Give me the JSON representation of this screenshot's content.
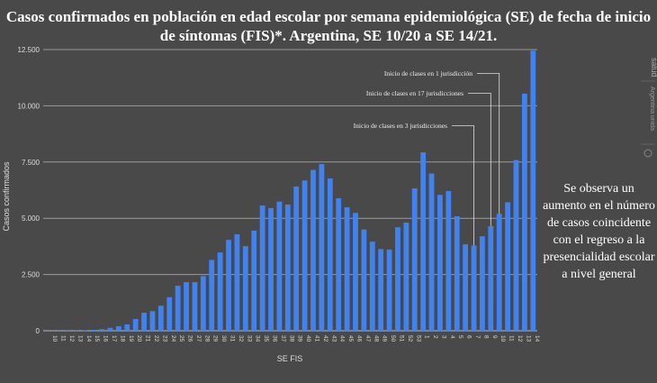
{
  "chart_data": {
    "type": "bar",
    "title": "Casos confirmados en población en edad escolar por semana epidemiológica (SE) de fecha de inicio de síntomas (FIS)*. Argentina, SE 10/20 a SE 14/21.",
    "xlabel": "SE FIS",
    "ylabel": "Casos confirmados",
    "ylim": [
      0,
      12500
    ],
    "yticks": [
      "0",
      "2.500",
      "5.000",
      "7.500",
      "10.000",
      "12.500"
    ],
    "ytick_values": [
      0,
      2500,
      5000,
      7500,
      10000,
      12500
    ],
    "grid": true,
    "bar_color": "#3f82f0",
    "categories": [
      "10",
      "11",
      "12",
      "13",
      "14",
      "15",
      "16",
      "17",
      "18",
      "19",
      "20",
      "21",
      "22",
      "23",
      "24",
      "25",
      "26",
      "27",
      "28",
      "29",
      "30",
      "31",
      "32",
      "33",
      "34",
      "35",
      "36",
      "37",
      "38",
      "39",
      "40",
      "41",
      "42",
      "43",
      "44",
      "45",
      "46",
      "47",
      "48",
      "49",
      "50",
      "51",
      "52",
      "53",
      "1",
      "2",
      "3",
      "4",
      "5",
      "6",
      "7",
      "8",
      "9",
      "10",
      "11",
      "12",
      "13",
      "14"
    ],
    "values": [
      5,
      5,
      10,
      10,
      15,
      40,
      70,
      130,
      200,
      280,
      520,
      800,
      870,
      1110,
      1490,
      2000,
      2160,
      2160,
      2430,
      3150,
      3480,
      4040,
      4290,
      3760,
      4450,
      5570,
      5450,
      5740,
      5610,
      6410,
      6680,
      7150,
      7410,
      6770,
      5890,
      5490,
      5240,
      4500,
      3960,
      3630,
      3610,
      4600,
      4810,
      6330,
      7930,
      6990,
      6040,
      6210,
      5090,
      3840,
      3790,
      4200,
      4650,
      5200,
      5710,
      7590,
      10540,
      12450
    ],
    "annotations": [
      {
        "text": "Inicio de clases en 1 jurisdicción",
        "category_index": 53
      },
      {
        "text": "Inicio de clases en 17 jurisdicciones",
        "category_index": 52
      },
      {
        "text": "Inicio de clases en 3 jurisdicciones",
        "category_index": 50
      }
    ]
  },
  "side_note": [
    "Se observa un",
    "aumento en el número",
    "de casos coincidente",
    "con el regreso a la",
    "presencialidad escolar",
    "a nivel general"
  ],
  "logo": {
    "top": "salud",
    "bottom": "Argentina unida"
  }
}
